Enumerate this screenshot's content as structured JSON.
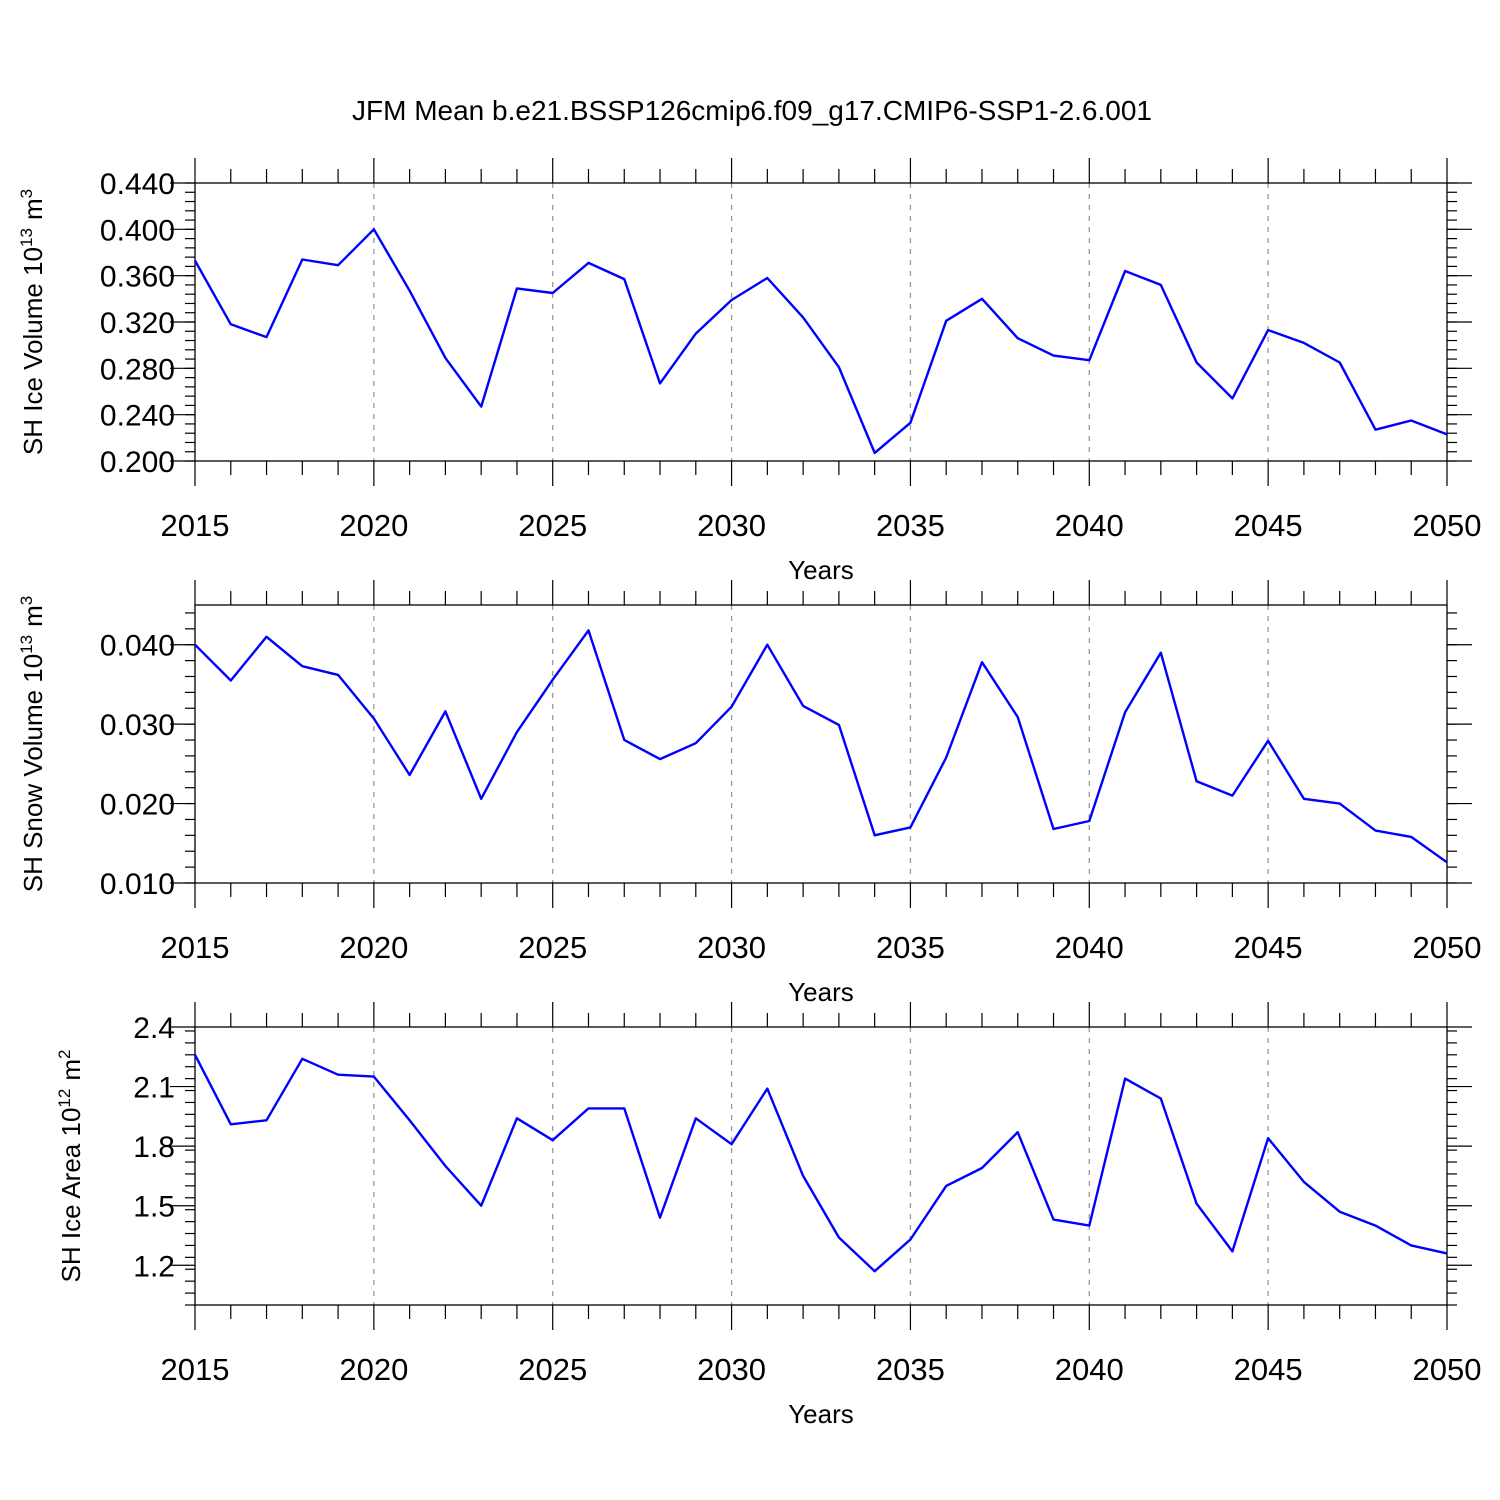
{
  "title": "JFM Mean b.e21.BSSP126cmip6.f09_g17.CMIP6-SSP1-2.6.001",
  "chart_data": [
    {
      "type": "line",
      "xlabel": "Years",
      "ylabel": "SH Ice Volume 10",
      "ylabel_exp": "13",
      "ylabel_unit": "m",
      "ylabel_unit_exp": "3",
      "xlim": [
        2015,
        2050
      ],
      "ylim": [
        0.2,
        0.44
      ],
      "xticks": [
        "2015",
        "2020",
        "2025",
        "2030",
        "2035",
        "2040",
        "2045",
        "2050"
      ],
      "yticks": [
        "0.200",
        "0.240",
        "0.280",
        "0.320",
        "0.360",
        "0.400",
        "0.440"
      ],
      "grid": "dashed vertical at 5-year ticks",
      "color": "#0000ff",
      "x": [
        2015,
        2016,
        2017,
        2018,
        2019,
        2020,
        2021,
        2022,
        2023,
        2024,
        2025,
        2026,
        2027,
        2028,
        2029,
        2030,
        2031,
        2032,
        2033,
        2034,
        2035,
        2036,
        2037,
        2038,
        2039,
        2040,
        2041,
        2042,
        2043,
        2044,
        2045,
        2046,
        2047,
        2048,
        2049,
        2050
      ],
      "values": [
        0.373,
        0.318,
        0.307,
        0.374,
        0.369,
        0.4,
        0.347,
        0.289,
        0.247,
        0.349,
        0.345,
        0.371,
        0.357,
        0.267,
        0.31,
        0.339,
        0.358,
        0.324,
        0.281,
        0.207,
        0.233,
        0.321,
        0.34,
        0.306,
        0.291,
        0.287,
        0.364,
        0.352,
        0.285,
        0.254,
        0.313,
        0.302,
        0.285,
        0.227,
        0.235,
        0.223
      ]
    },
    {
      "type": "line",
      "xlabel": "Years",
      "ylabel": "SH Snow Volume 10",
      "ylabel_exp": "13",
      "ylabel_unit": "m",
      "ylabel_unit_exp": "3",
      "xlim": [
        2015,
        2050
      ],
      "ylim": [
        0.01,
        0.045
      ],
      "xticks": [
        "2015",
        "2020",
        "2025",
        "2030",
        "2035",
        "2040",
        "2045",
        "2050"
      ],
      "yticks": [
        "0.010",
        "0.020",
        "0.030",
        "0.040"
      ],
      "grid": "dashed vertical at 5-year ticks",
      "color": "#0000ff",
      "x": [
        2015,
        2016,
        2017,
        2018,
        2019,
        2020,
        2021,
        2022,
        2023,
        2024,
        2025,
        2026,
        2027,
        2028,
        2029,
        2030,
        2031,
        2032,
        2033,
        2034,
        2035,
        2036,
        2037,
        2038,
        2039,
        2040,
        2041,
        2042,
        2043,
        2044,
        2045,
        2046,
        2047,
        2048,
        2049,
        2050
      ],
      "values": [
        0.04,
        0.0355,
        0.041,
        0.0373,
        0.0362,
        0.0307,
        0.0236,
        0.0316,
        0.0206,
        0.029,
        0.0356,
        0.0418,
        0.028,
        0.0256,
        0.0276,
        0.0322,
        0.04,
        0.0323,
        0.0299,
        0.016,
        0.017,
        0.0258,
        0.0378,
        0.0309,
        0.0168,
        0.0178,
        0.0315,
        0.039,
        0.0228,
        0.021,
        0.0279,
        0.0206,
        0.02,
        0.0166,
        0.0158,
        0.0126
      ]
    },
    {
      "type": "line",
      "xlabel": "Years",
      "ylabel": "SH Ice Area 10",
      "ylabel_exp": "12",
      "ylabel_unit": "m",
      "ylabel_unit_exp": "2",
      "xlim": [
        2015,
        2050
      ],
      "ylim": [
        1.0,
        2.4
      ],
      "xticks": [
        "2015",
        "2020",
        "2025",
        "2030",
        "2035",
        "2040",
        "2045",
        "2050"
      ],
      "yticks": [
        "1.2",
        "1.5",
        "1.8",
        "2.1",
        "2.4"
      ],
      "grid": "dashed vertical at 5-year ticks",
      "color": "#0000ff",
      "x": [
        2015,
        2016,
        2017,
        2018,
        2019,
        2020,
        2021,
        2022,
        2023,
        2024,
        2025,
        2026,
        2027,
        2028,
        2029,
        2030,
        2031,
        2032,
        2033,
        2034,
        2035,
        2036,
        2037,
        2038,
        2039,
        2040,
        2041,
        2042,
        2043,
        2044,
        2045,
        2046,
        2047,
        2048,
        2049,
        2050
      ],
      "values": [
        2.26,
        1.91,
        1.93,
        2.24,
        2.16,
        2.15,
        1.93,
        1.7,
        1.5,
        1.94,
        1.83,
        1.99,
        1.99,
        1.44,
        1.94,
        1.81,
        2.09,
        1.65,
        1.34,
        1.17,
        1.33,
        1.6,
        1.69,
        1.87,
        1.43,
        1.4,
        2.14,
        2.04,
        1.51,
        1.27,
        1.84,
        1.62,
        1.47,
        1.4,
        1.3,
        1.26
      ]
    }
  ]
}
